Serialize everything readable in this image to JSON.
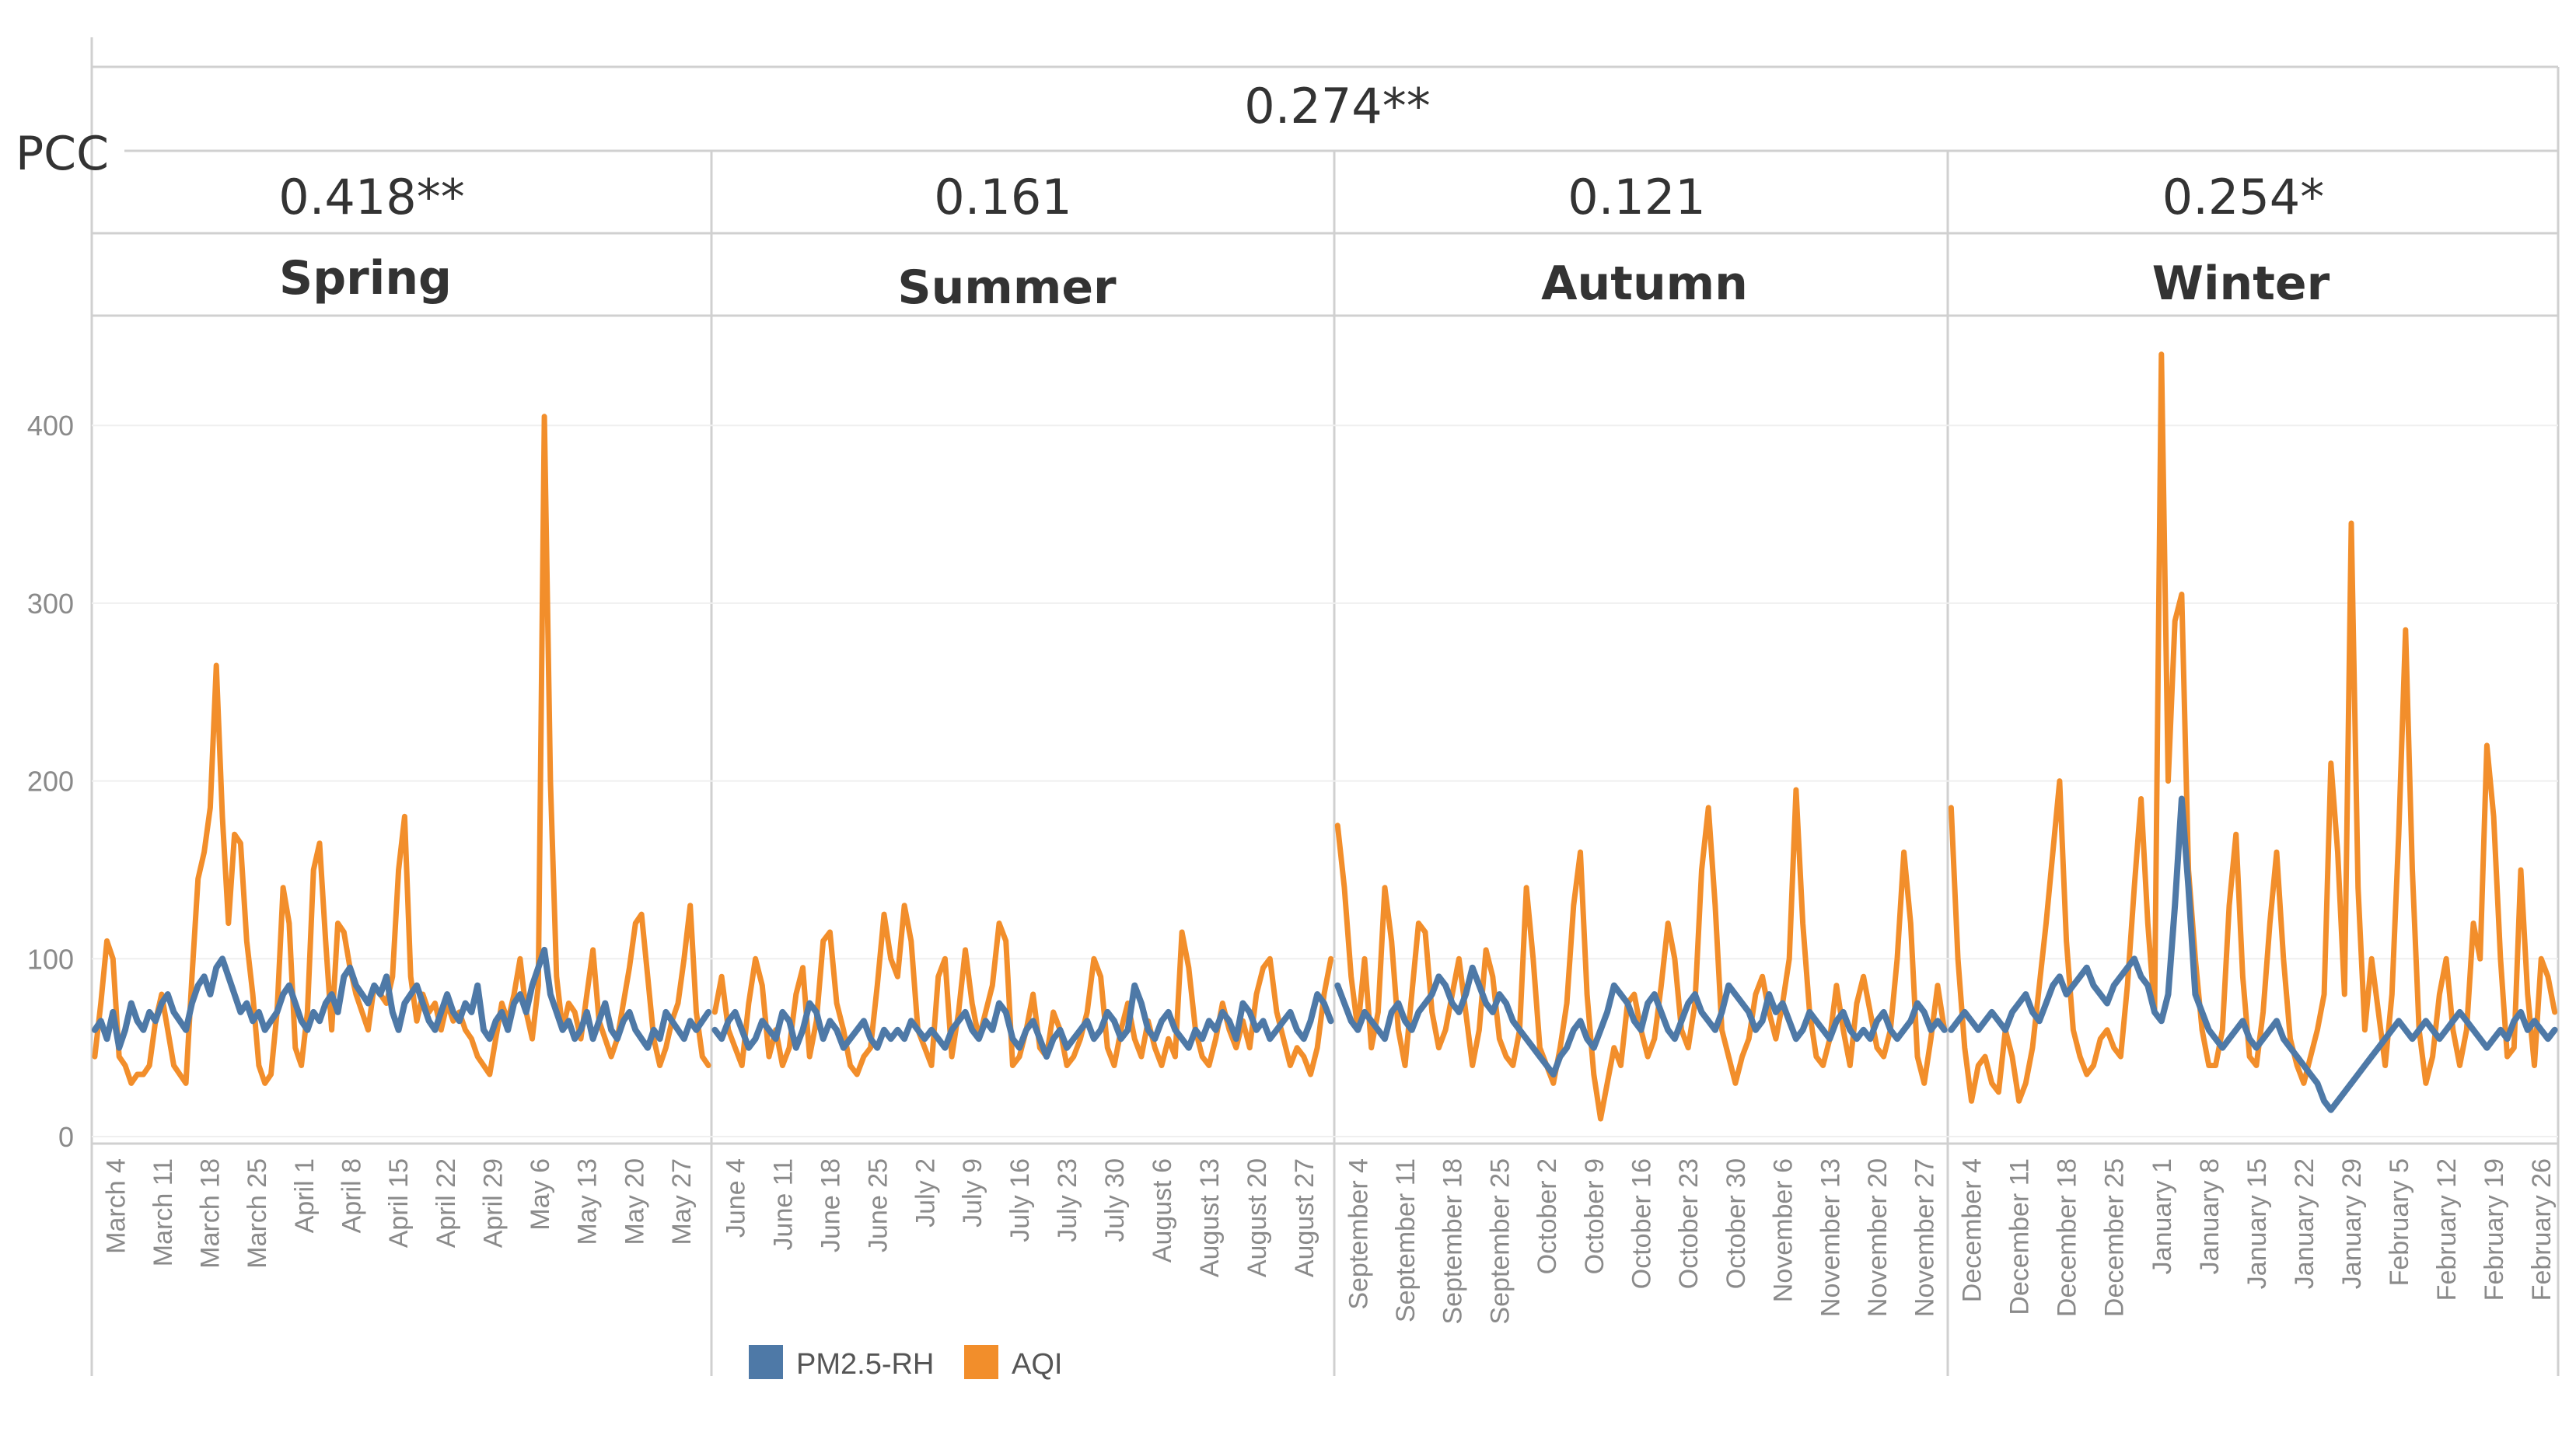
{
  "pcc_label": "PCC",
  "overall_pcc": "0.274**",
  "seasons": [
    {
      "name": "Spring",
      "pcc": "0.418**"
    },
    {
      "name": "Summer",
      "pcc": "0.161"
    },
    {
      "name": "Autumn",
      "pcc": "0.121"
    },
    {
      "name": "Winter",
      "pcc": "0.254*"
    }
  ],
  "legend": [
    {
      "label": "PM2.5-RH",
      "color": "#4e79a7"
    },
    {
      "label": "AQI",
      "color": "#f28e2b"
    }
  ],
  "chart_data": {
    "type": "line",
    "title": "",
    "xlabel": "",
    "ylabel": "",
    "ylim": [
      0,
      460
    ],
    "yticks": [
      0,
      100,
      200,
      300,
      400
    ],
    "grid": true,
    "x_start": "March 1",
    "x_end": "February 28",
    "days_per_season": [
      92,
      92,
      91,
      90
    ],
    "panels": [
      {
        "season": "Spring",
        "x_tick_labels": [
          "March 4",
          "March 11",
          "March 18",
          "March 25",
          "April 1",
          "April 8",
          "April 15",
          "April 22",
          "April 29",
          "May 6",
          "May 13",
          "May 20",
          "May 27"
        ],
        "first_tick_day": 3
      },
      {
        "season": "Summer",
        "x_tick_labels": [
          "June 4",
          "June 11",
          "June 18",
          "June 25",
          "July 2",
          "July 9",
          "July 16",
          "July 23",
          "July 30",
          "August 6",
          "August 13",
          "August 20",
          "August 27"
        ],
        "first_tick_day": 3
      },
      {
        "season": "Autumn",
        "x_tick_labels": [
          "September 4",
          "September 11",
          "September 18",
          "September 25",
          "October 2",
          "October 9",
          "October 16",
          "October 23",
          "October 30",
          "November 6",
          "November 13",
          "November 20",
          "November 27"
        ],
        "first_tick_day": 3
      },
      {
        "season": "Winter",
        "x_tick_labels": [
          "December 4",
          "December 11",
          "December 18",
          "December 25",
          "January 1",
          "January 8",
          "January 15",
          "January 22",
          "January 29",
          "February 5",
          "February 12",
          "February 19",
          "February 26"
        ],
        "first_tick_day": 3
      }
    ],
    "series": [
      {
        "name": "AQI",
        "color": "#f28e2b",
        "values": [
          45,
          75,
          110,
          100,
          45,
          40,
          30,
          35,
          35,
          40,
          65,
          80,
          60,
          40,
          35,
          30,
          90,
          145,
          160,
          185,
          265,
          180,
          120,
          170,
          165,
          110,
          80,
          40,
          30,
          35,
          70,
          140,
          120,
          50,
          40,
          70,
          150,
          165,
          110,
          60,
          120,
          115,
          95,
          80,
          70,
          60,
          85,
          80,
          75,
          90,
          150,
          180,
          90,
          65,
          80,
          70,
          75,
          60,
          75,
          65,
          70,
          60,
          55,
          45,
          40,
          35,
          55,
          75,
          65,
          80,
          100,
          70,
          55,
          85,
          405,
          200,
          90,
          60,
          75,
          70,
          55,
          80,
          105,
          65,
          55,
          45,
          55,
          75,
          95,
          120,
          125,
          90,
          55,
          40,
          50,
          65,
          75,
          100,
          130,
          70,
          45,
          40
        ],
        "segments": [
          {
            "season": "Spring",
            "values": [
              45,
              75,
              110,
              100,
              45,
              40,
              30,
              35,
              35,
              40,
              65,
              80,
              60,
              40,
              35,
              30,
              90,
              145,
              160,
              185,
              265,
              180,
              120,
              170,
              165,
              110,
              80,
              40,
              30,
              35,
              70,
              140,
              120,
              50,
              40,
              70,
              150,
              165,
              110,
              60,
              120,
              115,
              95,
              80,
              70,
              60,
              85,
              80,
              75,
              90,
              150,
              180,
              90,
              65,
              80,
              70,
              75,
              60,
              75,
              65,
              70,
              60,
              55,
              45,
              40,
              35,
              55,
              75,
              65,
              80,
              100,
              70,
              55,
              85,
              405,
              200,
              90,
              60,
              75,
              70,
              55,
              80,
              105,
              65,
              55,
              45,
              55,
              75,
              95,
              120,
              125,
              90,
              55,
              40,
              50,
              65,
              75,
              100,
              130,
              70,
              45,
              40
            ]
          },
          {
            "season": "Summer",
            "values": [
              70,
              90,
              60,
              50,
              40,
              75,
              100,
              85,
              45,
              60,
              40,
              50,
              80,
              95,
              45,
              65,
              110,
              115,
              75,
              60,
              40,
              35,
              45,
              50,
              85,
              125,
              100,
              90,
              130,
              110,
              60,
              50,
              40,
              90,
              100,
              45,
              70,
              105,
              75,
              55,
              70,
              85,
              120,
              110,
              40,
              45,
              60,
              80,
              50,
              45,
              70,
              60,
              40,
              45,
              55,
              70,
              100,
              90,
              50,
              40,
              60,
              75,
              55,
              45,
              65,
              50,
              40,
              55,
              45,
              115,
              95,
              60,
              45,
              40,
              55,
              75,
              60,
              50,
              65,
              50,
              80,
              95,
              100,
              70,
              55,
              40,
              50,
              45,
              35,
              50,
              80,
              100
            ]
          },
          {
            "season": "Autumn",
            "values": [
              175,
              140,
              90,
              60,
              100,
              50,
              70,
              140,
              110,
              60,
              40,
              80,
              120,
              115,
              70,
              50,
              60,
              80,
              100,
              70,
              40,
              60,
              105,
              90,
              55,
              45,
              40,
              60,
              140,
              100,
              50,
              40,
              30,
              50,
              75,
              130,
              160,
              80,
              35,
              10,
              30,
              50,
              40,
              75,
              80,
              60,
              45,
              55,
              85,
              120,
              100,
              60,
              50,
              75,
              150,
              185,
              130,
              60,
              45,
              30,
              45,
              55,
              80,
              90,
              70,
              55,
              75,
              100,
              195,
              120,
              70,
              45,
              40,
              55,
              85,
              60,
              40,
              75,
              90,
              70,
              50,
              45,
              60,
              100,
              160,
              120,
              45,
              30,
              55,
              85,
              60
            ]
          },
          {
            "season": "Winter",
            "values": [
              185,
              100,
              50,
              20,
              40,
              45,
              30,
              25,
              60,
              45,
              20,
              30,
              50,
              85,
              120,
              160,
              200,
              110,
              60,
              45,
              35,
              40,
              55,
              60,
              50,
              45,
              85,
              140,
              190,
              120,
              70,
              440,
              200,
              290,
              305,
              150,
              100,
              60,
              40,
              40,
              60,
              130,
              170,
              90,
              45,
              40,
              70,
              120,
              160,
              100,
              55,
              40,
              30,
              45,
              60,
              80,
              210,
              160,
              80,
              345,
              140,
              60,
              100,
              70,
              40,
              80,
              170,
              285,
              150,
              60,
              30,
              45,
              80,
              100,
              60,
              40,
              60,
              120,
              100,
              220,
              180,
              100,
              45,
              50,
              150,
              80,
              40,
              100,
              90,
              70
            ]
          }
        ]
      },
      {
        "name": "PM2.5-RH",
        "color": "#4e79a7",
        "segments": [
          {
            "season": "Spring",
            "values": [
              60,
              65,
              55,
              70,
              50,
              60,
              75,
              65,
              60,
              70,
              65,
              75,
              80,
              70,
              65,
              60,
              75,
              85,
              90,
              80,
              95,
              100,
              90,
              80,
              70,
              75,
              65,
              70,
              60,
              65,
              70,
              80,
              85,
              75,
              65,
              60,
              70,
              65,
              75,
              80,
              70,
              90,
              95,
              85,
              80,
              75,
              85,
              80,
              90,
              70,
              60,
              75,
              80,
              85,
              75,
              65,
              60,
              70,
              80,
              70,
              65,
              75,
              70,
              85,
              60,
              55,
              65,
              70,
              60,
              75,
              80,
              70,
              85,
              95,
              105,
              80,
              70,
              60,
              65,
              55,
              60,
              70,
              55,
              65,
              75,
              60,
              55,
              65,
              70,
              60,
              55,
              50,
              60,
              55,
              70,
              65,
              60,
              55,
              65,
              60,
              65,
              70
            ]
          },
          {
            "season": "Summer",
            "values": [
              60,
              55,
              65,
              70,
              60,
              50,
              55,
              65,
              60,
              55,
              70,
              65,
              50,
              60,
              75,
              70,
              55,
              65,
              60,
              50,
              55,
              60,
              65,
              55,
              50,
              60,
              55,
              60,
              55,
              65,
              60,
              55,
              60,
              55,
              50,
              60,
              65,
              70,
              60,
              55,
              65,
              60,
              75,
              70,
              55,
              50,
              60,
              65,
              55,
              45,
              55,
              60,
              50,
              55,
              60,
              65,
              55,
              60,
              70,
              65,
              55,
              60,
              85,
              75,
              60,
              55,
              65,
              70,
              60,
              55,
              50,
              60,
              55,
              65,
              60,
              70,
              65,
              55,
              75,
              70,
              60,
              65,
              55,
              60,
              65,
              70,
              60,
              55,
              65,
              80,
              75,
              65
            ]
          },
          {
            "season": "Autumn",
            "values": [
              85,
              75,
              65,
              60,
              70,
              65,
              60,
              55,
              70,
              75,
              65,
              60,
              70,
              75,
              80,
              90,
              85,
              75,
              70,
              80,
              95,
              85,
              75,
              70,
              80,
              75,
              65,
              60,
              55,
              50,
              45,
              40,
              35,
              45,
              50,
              60,
              65,
              55,
              50,
              60,
              70,
              85,
              80,
              75,
              65,
              60,
              75,
              80,
              70,
              60,
              55,
              65,
              75,
              80,
              70,
              65,
              60,
              70,
              85,
              80,
              75,
              70,
              60,
              65,
              80,
              70,
              75,
              65,
              55,
              60,
              70,
              65,
              60,
              55,
              65,
              70,
              60,
              55,
              60,
              55,
              65,
              70,
              60,
              55,
              60,
              65,
              75,
              70,
              60,
              65,
              60
            ]
          },
          {
            "season": "Winter",
            "values": [
              60,
              65,
              70,
              65,
              60,
              65,
              70,
              65,
              60,
              70,
              75,
              80,
              70,
              65,
              75,
              85,
              90,
              80,
              85,
              90,
              95,
              85,
              80,
              75,
              85,
              90,
              95,
              100,
              90,
              85,
              70,
              65,
              80,
              130,
              190,
              140,
              80,
              70,
              60,
              55,
              50,
              55,
              60,
              65,
              55,
              50,
              55,
              60,
              65,
              55,
              50,
              45,
              40,
              35,
              30,
              20,
              15,
              20,
              25,
              30,
              35,
              40,
              45,
              50,
              55,
              60,
              65,
              60,
              55,
              60,
              65,
              60,
              55,
              60,
              65,
              70,
              65,
              60,
              55,
              50,
              55,
              60,
              55,
              65,
              70,
              60,
              65,
              60,
              55,
              60
            ]
          }
        ]
      }
    ]
  }
}
